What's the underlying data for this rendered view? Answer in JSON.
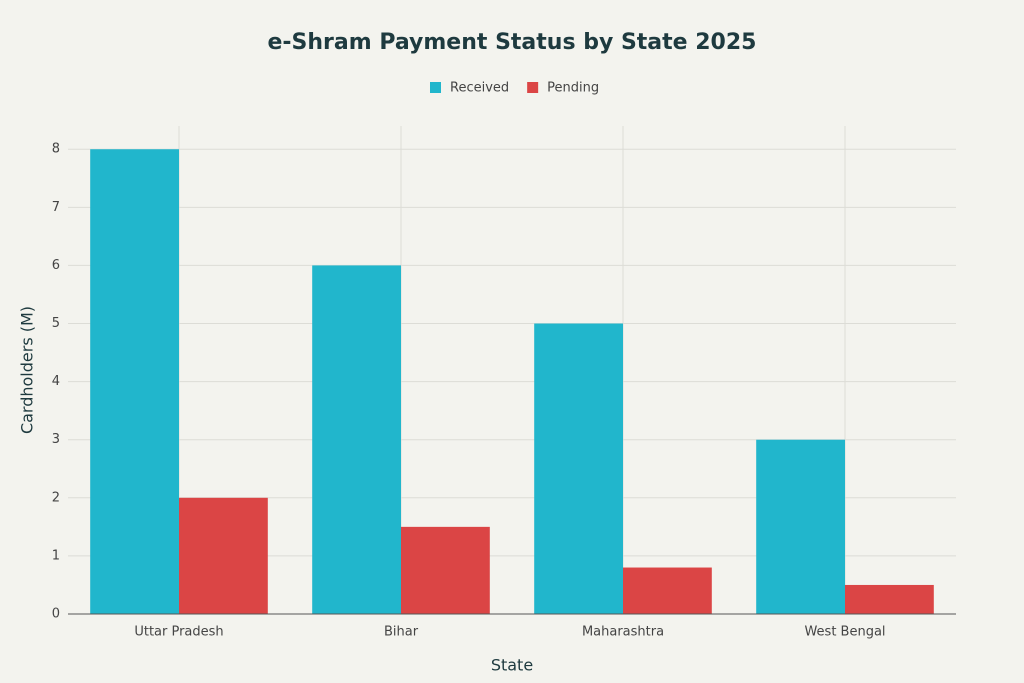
{
  "chart_data": {
    "type": "bar",
    "title": "e-Shram Payment Status by State 2025",
    "x_label": "State",
    "y_label": "Cardholders (M)",
    "categories": [
      "Uttar Pradesh",
      "Bihar",
      "Maharashtra",
      "West Bengal"
    ],
    "series": [
      {
        "name": "Received",
        "color": "#21b6cc",
        "values": [
          8,
          6,
          5,
          3
        ]
      },
      {
        "name": "Pending",
        "color": "#db4545",
        "values": [
          2,
          1.5,
          0.8,
          0.5
        ]
      }
    ],
    "ylim": [
      0,
      8.4
    ],
    "yticks": [
      0,
      1,
      2,
      3,
      4,
      5,
      6,
      7,
      8
    ],
    "grid": true,
    "legend": "top"
  }
}
